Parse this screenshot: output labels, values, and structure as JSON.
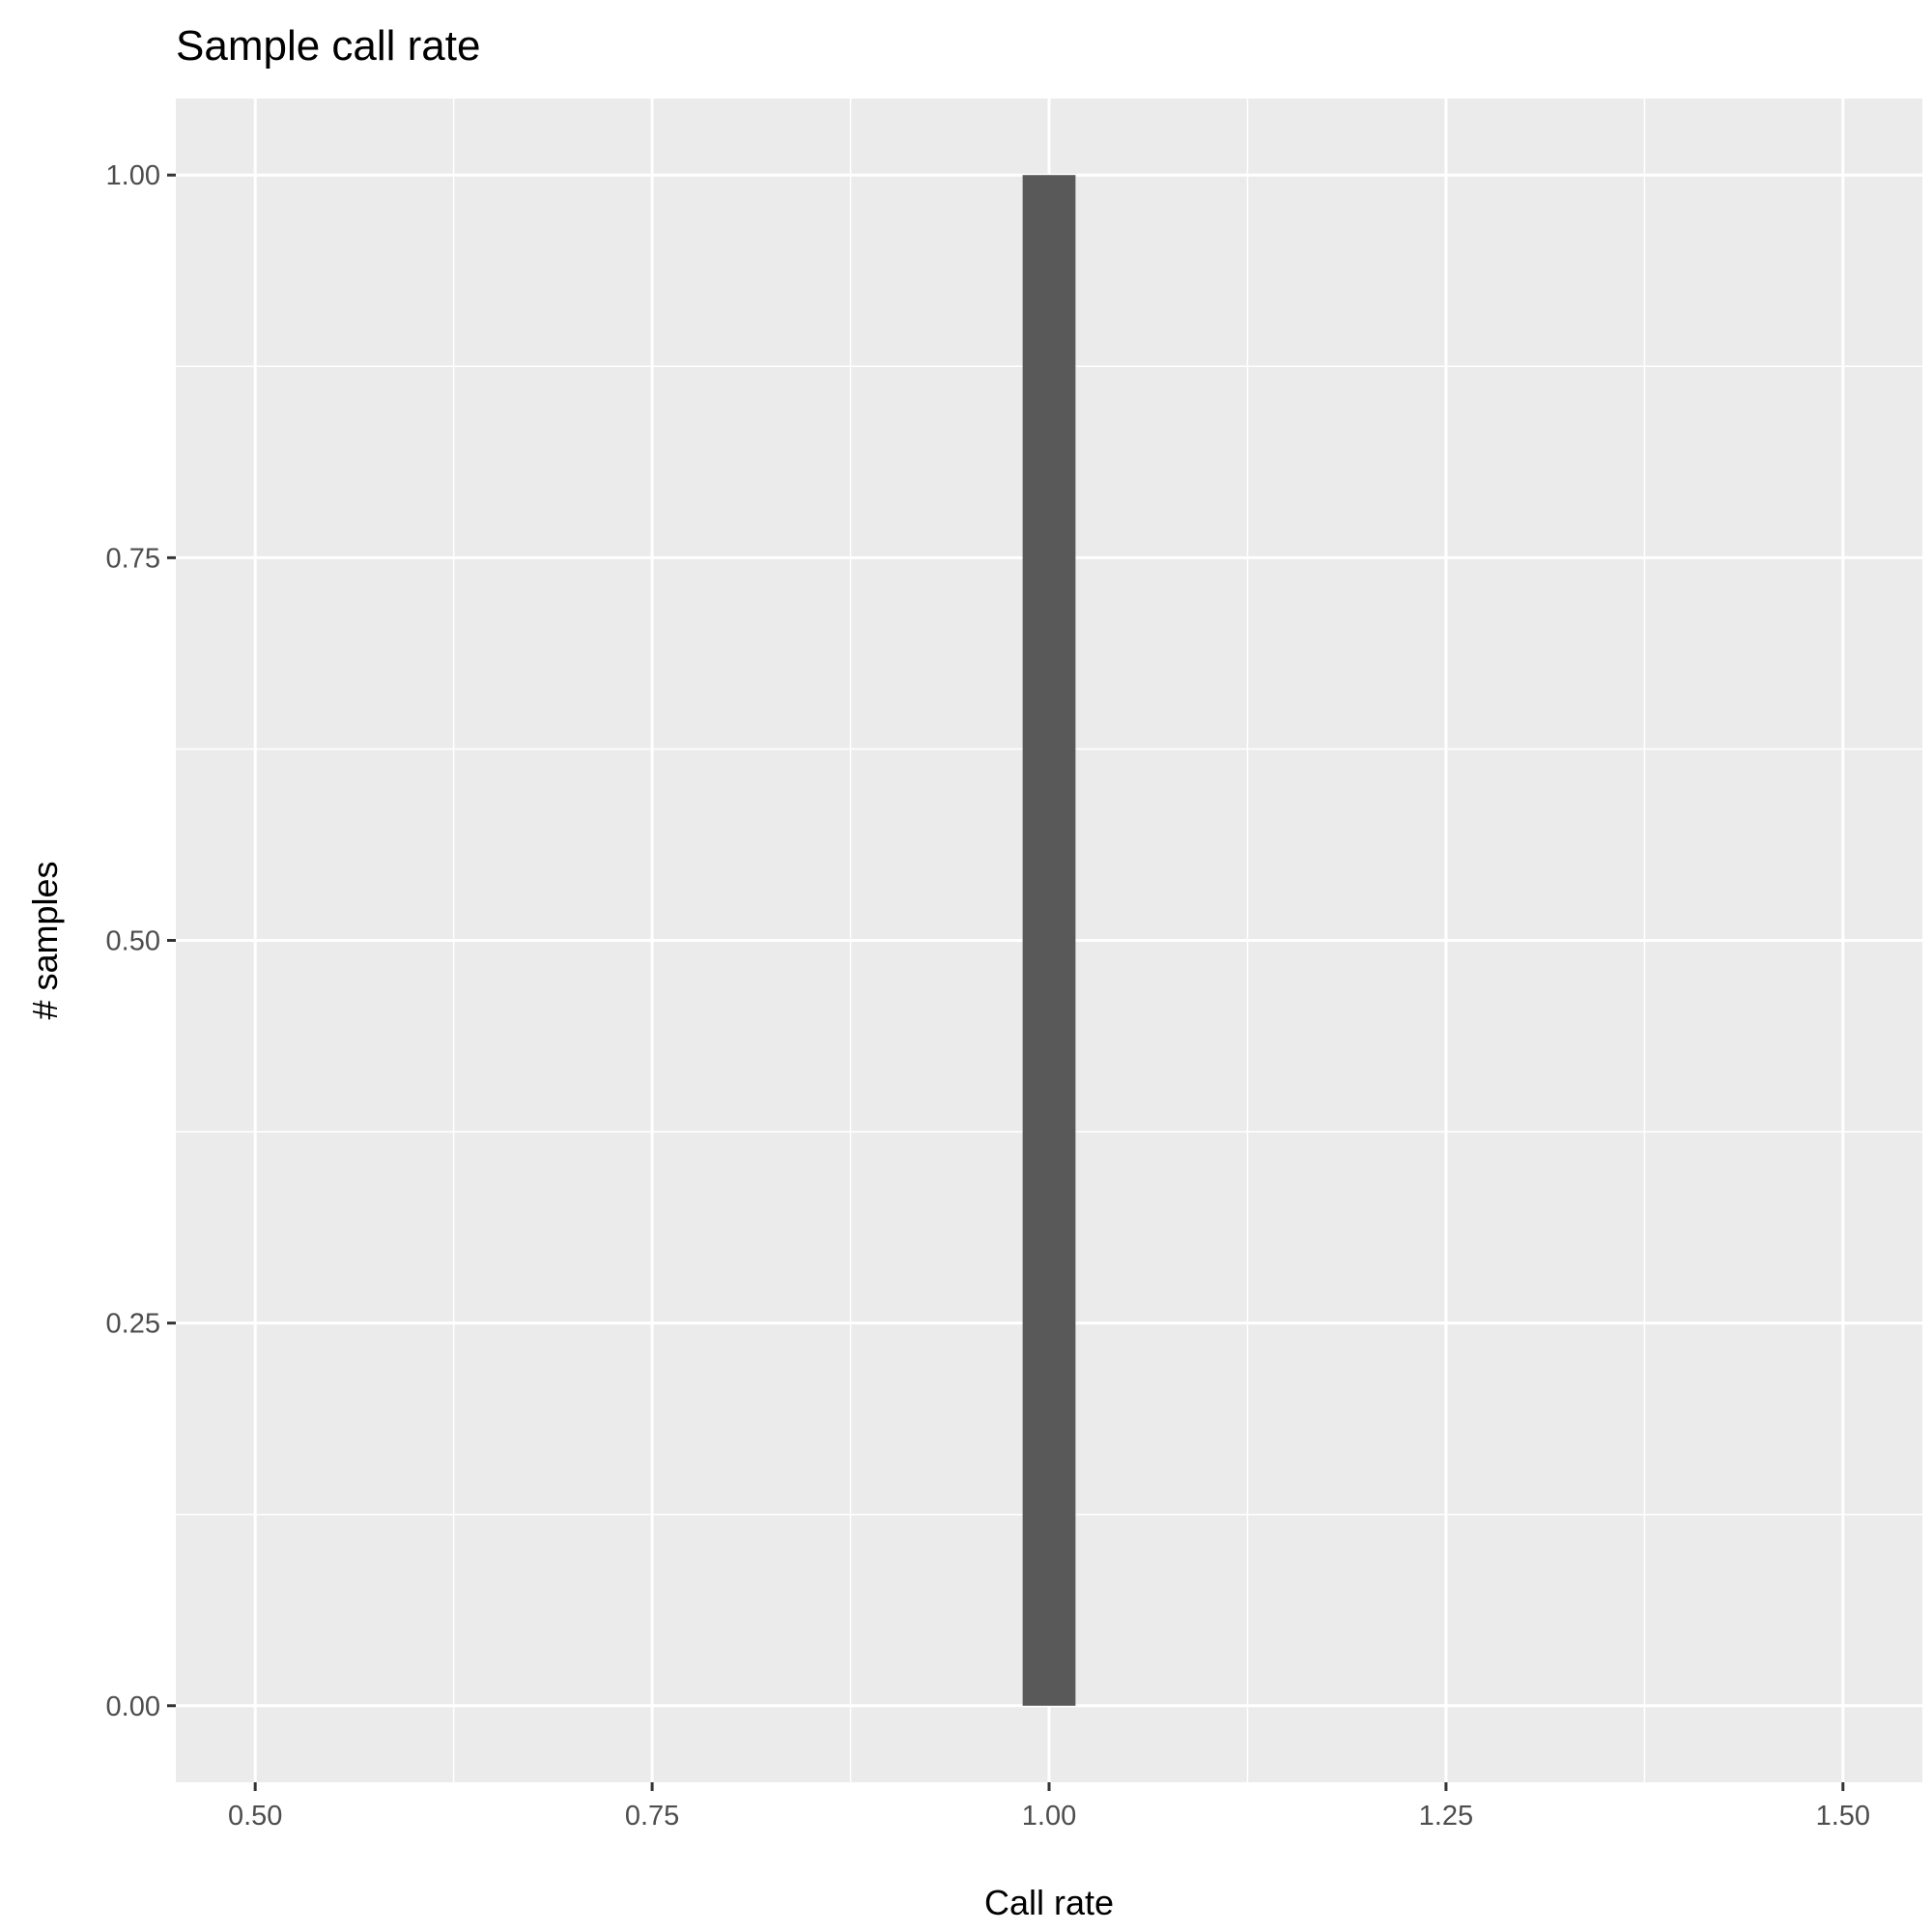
{
  "chart_data": {
    "type": "bar",
    "title": "Sample call rate",
    "xlabel": "Call rate",
    "ylabel": "# samples",
    "xlim": [
      0.45,
      1.55
    ],
    "ylim": [
      -0.05,
      1.05
    ],
    "x_ticks": [
      0.5,
      0.75,
      1.0,
      1.25,
      1.5
    ],
    "x_tick_labels": [
      "0.50",
      "0.75",
      "1.00",
      "1.25",
      "1.50"
    ],
    "x_minor_ticks": [
      0.625,
      0.875,
      1.125,
      1.375
    ],
    "y_ticks": [
      0.0,
      0.25,
      0.5,
      0.75,
      1.0
    ],
    "y_tick_labels": [
      "0.00",
      "0.25",
      "0.50",
      "0.75",
      "1.00"
    ],
    "y_minor_ticks": [
      0.125,
      0.375,
      0.625,
      0.875
    ],
    "bars": [
      {
        "x": 1.0,
        "width": 0.0333,
        "value": 1
      }
    ],
    "grid": true,
    "legend": "none",
    "colors": {
      "panel_background": "#ebebeb",
      "grid": "#ffffff",
      "bar_fill": "#595959",
      "tick_text": "#4d4d4d",
      "title_text": "#000000"
    }
  }
}
